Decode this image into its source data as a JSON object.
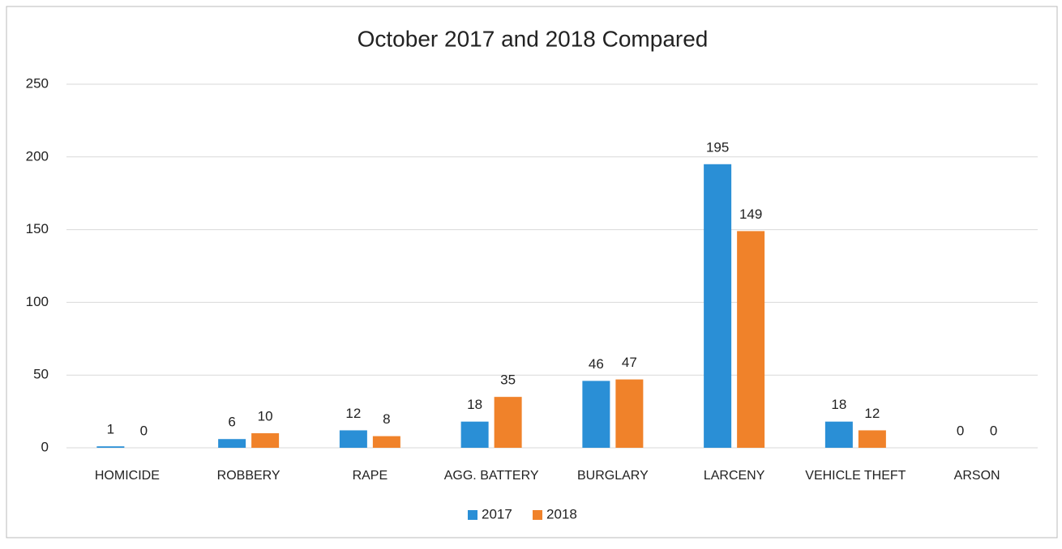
{
  "chart_data": {
    "type": "bar",
    "title": "October 2017 and 2018 Compared",
    "categories": [
      "HOMICIDE",
      "ROBBERY",
      "RAPE",
      "AGG. BATTERY",
      "BURGLARY",
      "LARCENY",
      "VEHICLE THEFT",
      "ARSON"
    ],
    "series": [
      {
        "name": "2017",
        "color": "#2a8fd6",
        "values": [
          1,
          6,
          12,
          18,
          46,
          195,
          18,
          0
        ]
      },
      {
        "name": "2018",
        "color": "#f0822a",
        "values": [
          0,
          10,
          8,
          35,
          47,
          149,
          12,
          0
        ]
      }
    ],
    "ylim": [
      0,
      250
    ],
    "yticks": [
      0,
      50,
      100,
      150,
      200,
      250
    ],
    "grid": true,
    "legend": "bottom"
  }
}
